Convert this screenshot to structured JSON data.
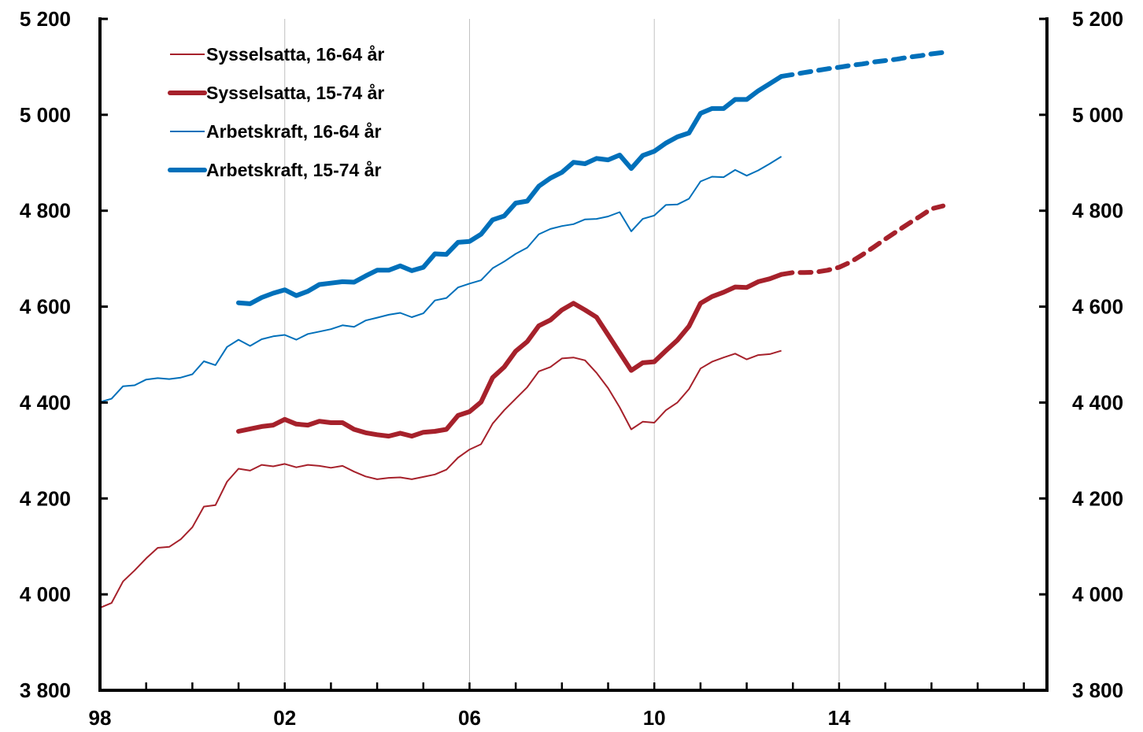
{
  "chart_data": {
    "type": "line",
    "title": "",
    "xlabel": "",
    "ylabel": "",
    "xlim": [
      1998.0,
      2018.5
    ],
    "ylim": [
      3800,
      5200
    ],
    "x_ticks": [
      1998,
      2002,
      2006,
      2010,
      2014
    ],
    "x_tick_labels": [
      "98",
      "02",
      "06",
      "10",
      "14"
    ],
    "y_ticks": [
      3800,
      4000,
      4200,
      4400,
      4600,
      4800,
      5000,
      5200
    ],
    "y_tick_labels": [
      "3 800",
      "4 000",
      "4 200",
      "4 400",
      "4 600",
      "4 800",
      "5 000",
      "5 200"
    ],
    "secondary_y_axis": true,
    "grid": "vertical",
    "legend_position": "top-left",
    "series": [
      {
        "name": "Sysselsatta, 16-64 år",
        "color": "#A6212B",
        "style": "thin",
        "x": [
          1998.0,
          1998.25,
          1998.5,
          1998.75,
          1999.0,
          1999.25,
          1999.5,
          1999.75,
          2000.0,
          2000.25,
          2000.5,
          2000.75,
          2001.0,
          2001.25,
          2001.5,
          2001.75,
          2002.0,
          2002.25,
          2002.5,
          2002.75,
          2003.0,
          2003.25,
          2003.5,
          2003.75,
          2004.0,
          2004.25,
          2004.5,
          2004.75,
          2005.0,
          2005.25,
          2005.5,
          2005.75,
          2006.0,
          2006.25,
          2006.5,
          2006.75,
          2007.0,
          2007.25,
          2007.5,
          2007.75,
          2008.0,
          2008.25,
          2008.5,
          2008.75,
          2009.0,
          2009.25,
          2009.5,
          2009.75,
          2010.0,
          2010.25,
          2010.5,
          2010.75,
          2011.0,
          2011.25,
          2011.5,
          2011.75,
          2012.0,
          2012.25,
          2012.5,
          2012.75
        ],
        "values": [
          3972,
          3982,
          4027,
          4050,
          4075,
          4097,
          4099,
          4115,
          4140,
          4183,
          4186,
          4235,
          4262,
          4258,
          4270,
          4267,
          4272,
          4265,
          4270,
          4268,
          4264,
          4268,
          4256,
          4246,
          4240,
          4243,
          4244,
          4240,
          4245,
          4250,
          4260,
          4285,
          4302,
          4313,
          4356,
          4384,
          4408,
          4432,
          4465,
          4474,
          4492,
          4494,
          4488,
          4462,
          4430,
          4390,
          4344,
          4360,
          4358,
          4384,
          4400,
          4428,
          4471,
          4485,
          4494,
          4502,
          4490,
          4499,
          4501,
          4508
        ]
      },
      {
        "name": "Sysselsatta, 15-74 år",
        "color": "#A6212B",
        "style": "thick",
        "x": [
          2001.0,
          2001.25,
          2001.5,
          2001.75,
          2002.0,
          2002.25,
          2002.5,
          2002.75,
          2003.0,
          2003.25,
          2003.5,
          2003.75,
          2004.0,
          2004.25,
          2004.5,
          2004.75,
          2005.0,
          2005.25,
          2005.5,
          2005.75,
          2006.0,
          2006.25,
          2006.5,
          2006.75,
          2007.0,
          2007.25,
          2007.5,
          2007.75,
          2008.0,
          2008.25,
          2008.5,
          2008.75,
          2009.0,
          2009.25,
          2009.5,
          2009.75,
          2010.0,
          2010.25,
          2010.5,
          2010.75,
          2011.0,
          2011.25,
          2011.5,
          2011.75,
          2012.0,
          2012.25,
          2012.5,
          2012.75
        ],
        "values": [
          4340,
          4345,
          4350,
          4353,
          4365,
          4355,
          4353,
          4361,
          4358,
          4358,
          4344,
          4337,
          4333,
          4330,
          4336,
          4330,
          4338,
          4340,
          4344,
          4373,
          4381,
          4401,
          4452,
          4474,
          4507,
          4527,
          4560,
          4572,
          4593,
          4607,
          4593,
          4578,
          4541,
          4504,
          4467,
          4483,
          4485,
          4508,
          4530,
          4559,
          4607,
          4621,
          4630,
          4641,
          4640,
          4652,
          4658,
          4667
        ]
      },
      {
        "name": "Arbetskraft, 16-64 år",
        "color": "#0070BA",
        "style": "thin",
        "x": [
          1998.0,
          1998.25,
          1998.5,
          1998.75,
          1999.0,
          1999.25,
          1999.5,
          1999.75,
          2000.0,
          2000.25,
          2000.5,
          2000.75,
          2001.0,
          2001.25,
          2001.5,
          2001.75,
          2002.0,
          2002.25,
          2002.5,
          2002.75,
          2003.0,
          2003.25,
          2003.5,
          2003.75,
          2004.0,
          2004.25,
          2004.5,
          2004.75,
          2005.0,
          2005.25,
          2005.5,
          2005.75,
          2006.0,
          2006.25,
          2006.5,
          2006.75,
          2007.0,
          2007.25,
          2007.5,
          2007.75,
          2008.0,
          2008.25,
          2008.5,
          2008.75,
          2009.0,
          2009.25,
          2009.5,
          2009.75,
          2010.0,
          2010.25,
          2010.5,
          2010.75,
          2011.0,
          2011.25,
          2011.5,
          2011.75,
          2012.0,
          2012.25,
          2012.5,
          2012.75
        ],
        "values": [
          4401,
          4408,
          4434,
          4436,
          4448,
          4451,
          4449,
          4452,
          4459,
          4486,
          4478,
          4516,
          4531,
          4518,
          4532,
          4538,
          4541,
          4531,
          4543,
          4548,
          4553,
          4561,
          4558,
          4571,
          4577,
          4583,
          4587,
          4578,
          4586,
          4613,
          4618,
          4640,
          4648,
          4655,
          4680,
          4694,
          4710,
          4723,
          4751,
          4762,
          4768,
          4772,
          4782,
          4783,
          4788,
          4797,
          4757,
          4783,
          4790,
          4812,
          4813,
          4825,
          4861,
          4871,
          4870,
          4885,
          4873,
          4884,
          4898,
          4913
        ]
      },
      {
        "name": "Arbetskraft, 15-74 år",
        "color": "#0070BA",
        "style": "thick",
        "x": [
          2001.0,
          2001.25,
          2001.5,
          2001.75,
          2002.0,
          2002.25,
          2002.5,
          2002.75,
          2003.0,
          2003.25,
          2003.5,
          2003.75,
          2004.0,
          2004.25,
          2004.5,
          2004.75,
          2005.0,
          2005.25,
          2005.5,
          2005.75,
          2006.0,
          2006.25,
          2006.5,
          2006.75,
          2007.0,
          2007.25,
          2007.5,
          2007.75,
          2008.0,
          2008.25,
          2008.5,
          2008.75,
          2009.0,
          2009.25,
          2009.5,
          2009.75,
          2010.0,
          2010.25,
          2010.5,
          2010.75,
          2011.0,
          2011.25,
          2011.5,
          2011.75,
          2012.0,
          2012.25,
          2012.5,
          2012.75
        ],
        "values": [
          4608,
          4606,
          4619,
          4628,
          4635,
          4623,
          4632,
          4646,
          4649,
          4652,
          4651,
          4664,
          4676,
          4676,
          4685,
          4675,
          4682,
          4710,
          4709,
          4734,
          4736,
          4751,
          4781,
          4789,
          4816,
          4820,
          4851,
          4868,
          4880,
          4901,
          4898,
          4909,
          4906,
          4916,
          4888,
          4915,
          4924,
          4941,
          4954,
          4962,
          5003,
          5013,
          5013,
          5032,
          5032,
          5050,
          5065,
          5080
        ]
      },
      {
        "name": "",
        "color": "#A6212B",
        "style": "thick-dashed",
        "x": [
          2012.75,
          2013.0,
          2013.25,
          2013.5,
          2013.75,
          2014.0,
          2014.25,
          2014.5,
          2014.75,
          2015.0,
          2015.25,
          2015.5,
          2015.75,
          2016.0,
          2016.25
        ],
        "values": [
          4667,
          4671,
          4671,
          4672,
          4676,
          4682,
          4693,
          4708,
          4724,
          4741,
          4757,
          4773,
          4788,
          4804,
          4810
        ]
      },
      {
        "name": "",
        "color": "#0070BA",
        "style": "thick-dashed",
        "x": [
          2012.75,
          2013.0,
          2013.25,
          2013.5,
          2013.75,
          2014.0,
          2014.25,
          2014.5,
          2014.75,
          2015.0,
          2015.25,
          2015.5,
          2015.75,
          2016.0,
          2016.25
        ],
        "values": [
          5080,
          5084,
          5088,
          5092,
          5096,
          5099,
          5103,
          5106,
          5110,
          5113,
          5116,
          5120,
          5123,
          5127,
          5130
        ]
      }
    ]
  }
}
